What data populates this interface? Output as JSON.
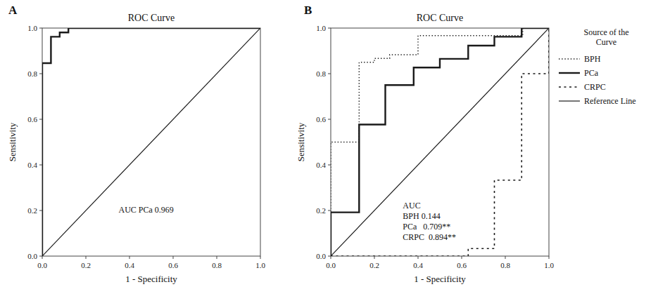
{
  "chart_data": [
    {
      "type": "step",
      "title": "ROC Curve",
      "x_label": "1 - Specificity",
      "y_label": "Sensitivity",
      "annotations": [
        "A",
        "AUC PCa 0.969"
      ],
      "xlim": [
        0,
        1
      ],
      "ylim": [
        0,
        1
      ],
      "xticks": [
        {
          "value": 0,
          "label": "0.0"
        },
        0.2,
        0.4,
        0.6,
        0.8,
        {
          "value": 1,
          "label": "1.0"
        }
      ],
      "yticks": [
        {
          "value": 0,
          "label": "0.0"
        },
        0.2,
        0.4,
        0.6,
        0.8,
        {
          "value": 1,
          "label": "1.0"
        }
      ],
      "grid": false,
      "series": [
        {
          "type": "line",
          "color": "#1a1a1a",
          "line_style": "solid",
          "x": [
            0,
            1
          ],
          "values": [
            0,
            1
          ]
        },
        {
          "color": "#1a1a1a",
          "line_style": "solid",
          "x": [
            0.0,
            0.0,
            0.04,
            0.04,
            0.08,
            0.08,
            0.12,
            0.12,
            1.0
          ],
          "values": [
            0.0,
            0.846,
            0.846,
            0.962,
            0.962,
            0.981,
            0.981,
            1.0,
            1.0
          ]
        }
      ]
    },
    {
      "type": "step",
      "title": "ROC Curve",
      "x_label": "1 - Specificity",
      "y_label": "Sensitivity",
      "annotations": [
        "B",
        "AUC\nBPH 0.144\nPCa   0.709**\nCRPC  0.894**"
      ],
      "xlim": [
        0,
        1
      ],
      "ylim": [
        0,
        1
      ],
      "xticks": [
        {
          "value": 0,
          "label": "0.0"
        },
        0.2,
        0.4,
        0.6,
        0.8,
        {
          "value": 1,
          "label": "1.0"
        }
      ],
      "yticks": [
        {
          "value": 0,
          "label": "0.0"
        },
        0.2,
        0.4,
        0.6,
        0.8,
        {
          "value": 1,
          "label": "1.0"
        }
      ],
      "grid": false,
      "legend": "right",
      "legend_title": "Source of the\nCurve",
      "series": [
        {
          "name": "BPH",
          "color": "#1a1a1a",
          "line_style": "dotted",
          "x": [
            0.0,
            0.0,
            0.13,
            0.13,
            0.2,
            0.2,
            0.27,
            0.27,
            0.4,
            0.4,
            0.88,
            0.88,
            1.0
          ],
          "values": [
            0.0,
            0.5,
            0.5,
            0.85,
            0.85,
            0.867,
            0.867,
            0.883,
            0.883,
            0.967,
            0.967,
            1.0,
            1.0
          ]
        },
        {
          "name": "PCa",
          "color": "#1a1a1a",
          "line_style": "solid",
          "x": [
            0.0,
            0.0,
            0.13,
            0.13,
            0.25,
            0.25,
            0.38,
            0.38,
            0.5,
            0.5,
            0.63,
            0.63,
            0.75,
            0.75,
            0.875,
            0.875,
            1.0
          ],
          "values": [
            0.0,
            0.192,
            0.192,
            0.577,
            0.577,
            0.75,
            0.75,
            0.827,
            0.827,
            0.865,
            0.865,
            0.923,
            0.923,
            0.962,
            0.962,
            1.0,
            1.0
          ]
        },
        {
          "name": "CRPC",
          "color": "#1a1a1a",
          "line_style": "dashed",
          "x": [
            0.0,
            0.63,
            0.63,
            0.75,
            0.75,
            0.875,
            0.875,
            1.0
          ],
          "values": [
            0.0,
            0.0,
            0.033,
            0.033,
            0.333,
            0.333,
            0.8,
            1.0
          ]
        },
        {
          "name": "Reference Line",
          "type": "line",
          "color": "#1a1a1a",
          "line_style": "solid",
          "x": [
            0,
            1
          ],
          "values": [
            0,
            1
          ]
        }
      ]
    }
  ]
}
